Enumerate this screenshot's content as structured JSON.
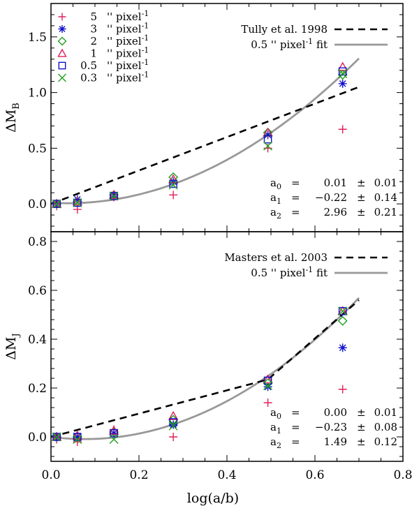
{
  "chart_data": [
    {
      "type": "scatter",
      "panel": "top",
      "ylabel": "ΔM",
      "ylabel_sub": "B",
      "xlabel": "",
      "xlim": [
        0.0,
        0.8
      ],
      "ylim": [
        -0.25,
        1.8
      ],
      "xticks": [
        "0.0",
        "0.2",
        "0.4",
        "0.6",
        "0.8"
      ],
      "yticks": [
        0.0,
        0.5,
        1.0,
        1.5
      ],
      "ytick_labels": [
        "0.0",
        "0.5",
        "1.0",
        "1.5"
      ],
      "x": [
        0.013,
        0.06,
        0.143,
        0.278,
        0.493,
        0.663
      ],
      "series": [
        {
          "name": "5 '' pixel",
          "marker": "plus",
          "color": "#e0205a",
          "values": [
            -0.02,
            -0.05,
            0.06,
            0.08,
            0.5,
            0.67
          ]
        },
        {
          "name": "3 '' pixel",
          "marker": "asterisk",
          "color": "#1010cc",
          "values": [
            0.0,
            0.04,
            0.08,
            0.2,
            0.62,
            1.08
          ]
        },
        {
          "name": "2 '' pixel",
          "marker": "diamond",
          "color": "#20a020",
          "values": [
            0.0,
            0.02,
            0.08,
            0.24,
            0.64,
            1.16
          ]
        },
        {
          "name": "1 '' pixel",
          "marker": "triangle",
          "color": "#e0205a",
          "values": [
            0.0,
            0.02,
            0.08,
            0.22,
            0.64,
            1.23
          ]
        },
        {
          "name": "0.5 '' pixel",
          "marker": "square",
          "color": "#1010cc",
          "values": [
            0.0,
            0.01,
            0.07,
            0.18,
            0.58,
            1.19
          ]
        },
        {
          "name": "0.3 '' pixel",
          "marker": "cross",
          "color": "#20a020",
          "values": [
            0.0,
            0.01,
            0.07,
            0.17,
            0.52,
            1.17
          ]
        }
      ],
      "legend_markers": [
        {
          "value": "5",
          "unit": "'' pixel",
          "exp": "-1"
        },
        {
          "value": "3",
          "unit": "'' pixel",
          "exp": "-1"
        },
        {
          "value": "2",
          "unit": "'' pixel",
          "exp": "-1"
        },
        {
          "value": "1",
          "unit": "'' pixel",
          "exp": "-1"
        },
        {
          "value": "0.5",
          "unit": "'' pixel",
          "exp": "-1"
        },
        {
          "value": "0.3",
          "unit": "'' pixel",
          "exp": "-1"
        }
      ],
      "legend_lines": [
        {
          "label": "Tully et al. 1998",
          "style": "dashed",
          "color": "#000000"
        },
        {
          "label": "0.5 '' pixel",
          "exp": "-1",
          "suffix": "fit",
          "style": "solid",
          "color": "#999999"
        }
      ],
      "reference_line": {
        "x": [
          0.0,
          0.7
        ],
        "y": [
          0.0,
          1.05
        ]
      },
      "fit": {
        "a0": 0.01,
        "a1": -0.22,
        "a2": 2.96,
        "xmax": 0.7
      },
      "coefficients": [
        {
          "name": "a",
          "sub": "0",
          "eq": "=",
          "value": "0.01",
          "pm": "±",
          "err": "0.01"
        },
        {
          "name": "a",
          "sub": "1",
          "eq": "=",
          "value": "−0.22",
          "pm": "±",
          "err": "0.14"
        },
        {
          "name": "a",
          "sub": "2",
          "eq": "=",
          "value": "2.96",
          "pm": "±",
          "err": "0.21"
        }
      ]
    },
    {
      "type": "scatter",
      "panel": "bottom",
      "ylabel": "ΔM",
      "ylabel_sub": "J",
      "xlabel": "log(a/b)",
      "xlim": [
        0.0,
        0.8
      ],
      "ylim": [
        -0.1,
        0.84
      ],
      "xticks": [
        "0.0",
        "0.2",
        "0.4",
        "0.6",
        "0.8"
      ],
      "yticks": [
        0.0,
        0.2,
        0.4,
        0.6,
        0.8
      ],
      "ytick_labels": [
        "0.0",
        "0.2",
        "0.4",
        "0.6",
        "0.8"
      ],
      "x": [
        0.013,
        0.06,
        0.143,
        0.278,
        0.493,
        0.663
      ],
      "series": [
        {
          "name": "5 '' pixel",
          "marker": "plus",
          "color": "#e0205a",
          "values": [
            -0.01,
            -0.02,
            0.03,
            0.0,
            0.14,
            0.195
          ]
        },
        {
          "name": "3 '' pixel",
          "marker": "asterisk",
          "color": "#1010cc",
          "values": [
            0.0,
            0.0,
            0.015,
            0.05,
            0.205,
            0.365
          ]
        },
        {
          "name": "2 '' pixel",
          "marker": "diamond",
          "color": "#20a020",
          "values": [
            0.0,
            0.0,
            0.02,
            0.07,
            0.22,
            0.475
          ]
        },
        {
          "name": "1 '' pixel",
          "marker": "triangle",
          "color": "#e0205a",
          "values": [
            0.0,
            0.005,
            0.025,
            0.085,
            0.235,
            0.515
          ]
        },
        {
          "name": "0.5 '' pixel",
          "marker": "square",
          "color": "#1010cc",
          "values": [
            0.0,
            0.0,
            0.015,
            0.06,
            0.23,
            0.515
          ]
        },
        {
          "name": "0.3 '' pixel",
          "marker": "cross",
          "color": "#20a020",
          "values": [
            0.0,
            -0.01,
            -0.01,
            0.045,
            0.21,
            0.515
          ]
        }
      ],
      "legend_lines": [
        {
          "label": "Masters et al. 2003",
          "style": "dashed",
          "color": "#000000"
        },
        {
          "label": "0.5 '' pixel",
          "exp": "-1",
          "suffix": "fit",
          "style": "solid",
          "color": "#999999"
        }
      ],
      "reference_line": {
        "x": [
          0.0,
          0.493,
          0.7
        ],
        "y": [
          0.0,
          0.235,
          0.56
        ]
      },
      "fit": {
        "a0": 0.0,
        "a1": -0.23,
        "a2": 1.49,
        "xmax": 0.7
      },
      "coefficients": [
        {
          "name": "a",
          "sub": "0",
          "eq": "=",
          "value": "0.00",
          "pm": "±",
          "err": "0.01"
        },
        {
          "name": "a",
          "sub": "1",
          "eq": "=",
          "value": "−0.23",
          "pm": "±",
          "err": "0.08"
        },
        {
          "name": "a",
          "sub": "2",
          "eq": "=",
          "value": "1.49",
          "pm": "±",
          "err": "0.12"
        }
      ]
    }
  ]
}
